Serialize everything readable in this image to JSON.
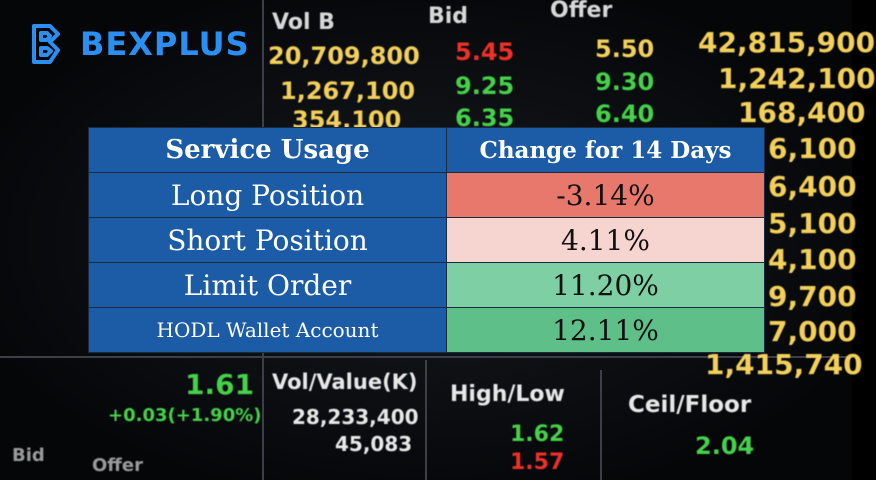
{
  "logo": "BEXPLUS",
  "table": {
    "header": [
      "Service Usage",
      "Change for 14 Days"
    ],
    "rows": [
      [
        "Long Position",
        "-3.14%"
      ],
      [
        "Short Position",
        "4.11%"
      ],
      [
        "Limit Order",
        "11.20%"
      ],
      [
        "HODL Wallet Account",
        "12.11%"
      ]
    ]
  },
  "background": {
    "texts": [
      "Vol B",
      "Bid",
      "Offer",
      "20,709,800",
      "5.45",
      "5.50",
      "42,815,900",
      "1,267,100",
      "9.25",
      "9.30",
      "1,242,100",
      "354,100",
      "6.35",
      "6.40",
      "168,400",
      "6,100",
      "6,400",
      "5,100",
      "4,100",
      "9,700",
      "7,000",
      "1,415,740",
      "1.61",
      "+0.03(+1.90%)",
      "Vol/Value(K)",
      "28,233,400",
      "45,083",
      "High/Low",
      "1.62",
      "1.57",
      "Ceil/Floor",
      "2.04",
      "Bid",
      "Offer"
    ]
  }
}
